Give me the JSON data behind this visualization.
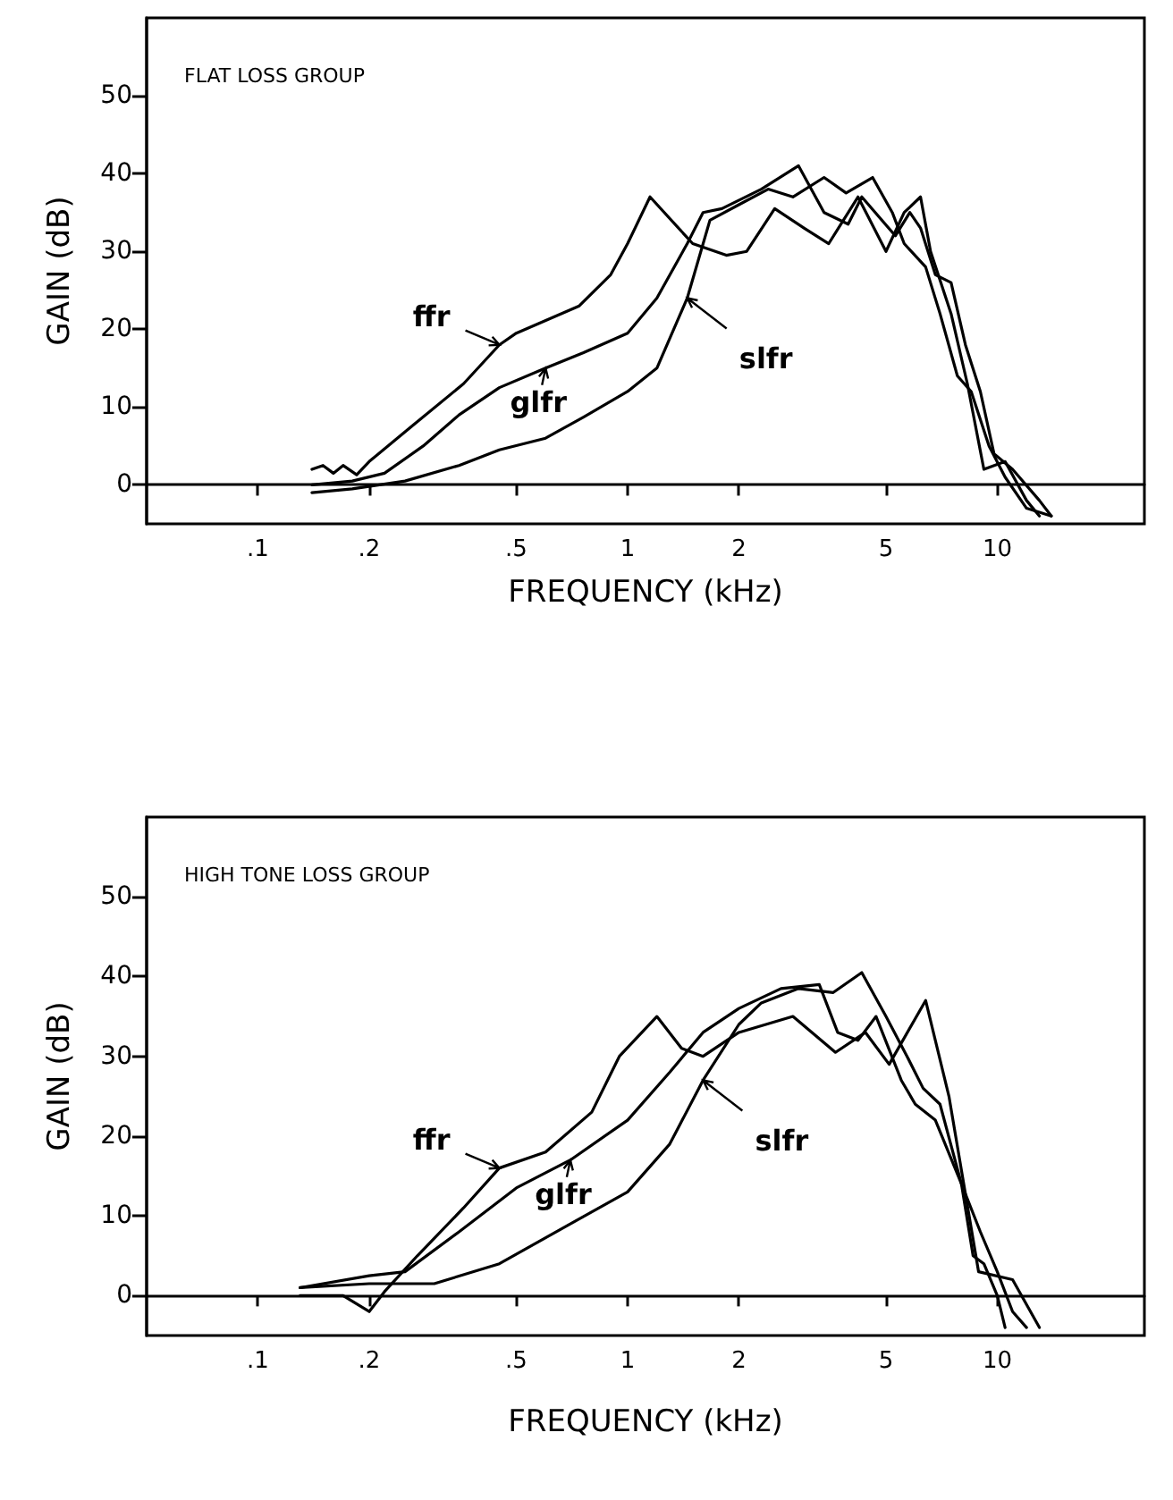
{
  "chart_data": [
    {
      "type": "line",
      "title": "FLAT LOSS GROUP",
      "xlabel": "FREQUENCY (kHz)",
      "ylabel": "GAIN (dB)",
      "log": "x",
      "marker": "none",
      "xlim": [
        0.05,
        25
      ],
      "xticks": [
        {
          "value": 0.1,
          "label": ".1"
        },
        {
          "value": 0.2,
          "label": ".2"
        },
        {
          "value": 0.5,
          "label": ".5"
        },
        1,
        2,
        5,
        10
      ],
      "ylim": [
        -5,
        60
      ],
      "yticks": [
        0,
        10,
        20,
        30,
        40,
        50
      ],
      "series": [
        {
          "name": "ffr",
          "color": "#000000",
          "x": [
            0.14,
            0.15,
            0.16,
            0.17,
            0.185,
            0.2,
            0.26,
            0.36,
            0.45,
            0.5,
            0.74,
            0.9,
            1.0,
            1.15,
            1.5,
            1.85,
            2.1,
            2.5,
            3.0,
            3.5,
            4.2,
            5.0,
            5.6,
            6.2,
            6.6,
            7.5,
            8.3,
            9.2,
            10.5,
            12,
            13
          ],
          "values": [
            2,
            2.5,
            1.5,
            2.5,
            1.3,
            3,
            7.5,
            13,
            18,
            19.5,
            23,
            27,
            31,
            37,
            31,
            29.5,
            30,
            35.5,
            33,
            31,
            37,
            30,
            35,
            37,
            30,
            22,
            13,
            2,
            3,
            -2,
            -4
          ]
        },
        {
          "name": "glfr",
          "color": "#000000",
          "x": [
            0.14,
            0.18,
            0.22,
            0.28,
            0.35,
            0.45,
            0.6,
            0.76,
            1.0,
            1.2,
            1.45,
            1.6,
            1.8,
            2.3,
            2.9,
            3.4,
            3.95,
            4.3,
            5.3,
            5.8,
            6.2,
            6.8,
            7.5,
            8.2,
            9,
            9.8,
            11,
            13,
            14
          ],
          "values": [
            0,
            0.5,
            1.5,
            5,
            9,
            12.5,
            15,
            17,
            19.5,
            24,
            31,
            35,
            35.5,
            38,
            41,
            35,
            33.5,
            37,
            32,
            35,
            33,
            27,
            26,
            18,
            12,
            4,
            2,
            -2,
            -4
          ]
        },
        {
          "name": "slfr",
          "color": "#000000",
          "x": [
            0.14,
            0.18,
            0.25,
            0.35,
            0.45,
            0.6,
            0.76,
            1.0,
            1.2,
            1.45,
            1.67,
            2.0,
            2.4,
            2.8,
            3.4,
            3.9,
            4.6,
            5.2,
            5.6,
            6.4,
            7,
            7.8,
            8.5,
            9.5,
            10.5,
            12,
            14
          ],
          "values": [
            -1,
            -0.5,
            0.5,
            2.5,
            4.5,
            6,
            8.7,
            12,
            15,
            24,
            34,
            36,
            38,
            37,
            39.5,
            37.5,
            39.5,
            35,
            31,
            28,
            22,
            14,
            12,
            5,
            1,
            -3,
            -4
          ]
        }
      ]
    },
    {
      "type": "line",
      "title": "HIGH TONE LOSS GROUP",
      "xlabel": "FREQUENCY (kHz)",
      "ylabel": "GAIN (dB)",
      "log": "x",
      "marker": "none",
      "xlim": [
        0.05,
        25
      ],
      "xticks": [
        {
          "value": 0.1,
          "label": ".1"
        },
        {
          "value": 0.2,
          "label": ".2"
        },
        {
          "value": 0.5,
          "label": ".5"
        },
        1,
        2,
        5,
        10
      ],
      "ylim": [
        -5,
        60
      ],
      "yticks": [
        0,
        10,
        20,
        30,
        40,
        50
      ],
      "series": [
        {
          "name": "ffr",
          "color": "#000000",
          "x": [
            0.13,
            0.17,
            0.2,
            0.22,
            0.27,
            0.36,
            0.45,
            0.6,
            0.8,
            0.95,
            1.2,
            1.4,
            1.6,
            2.0,
            2.8,
            3.65,
            4.4,
            5.1,
            6.4,
            7.4,
            8.9,
            11,
            13
          ],
          "values": [
            0,
            0,
            -2,
            0.5,
            5,
            11,
            16,
            18,
            23,
            30,
            35,
            31,
            30,
            33,
            35,
            30.5,
            33,
            29,
            37,
            25,
            3,
            2,
            -4
          ]
        },
        {
          "name": "glfr",
          "color": "#000000",
          "x": [
            0.13,
            0.2,
            0.25,
            0.35,
            0.5,
            0.7,
            1.0,
            1.3,
            1.6,
            2.0,
            2.6,
            3.3,
            3.7,
            4.2,
            4.7,
            5.5,
            6.0,
            6.8,
            8,
            9,
            10,
            11,
            12
          ],
          "values": [
            1,
            2.5,
            3,
            8,
            13.5,
            17,
            22,
            28,
            33,
            36,
            38.5,
            39,
            33,
            32,
            35,
            27,
            24,
            22,
            14,
            8,
            3,
            -2,
            -4
          ]
        },
        {
          "name": "slfr",
          "color": "#000000",
          "x": [
            0.13,
            0.2,
            0.3,
            0.45,
            0.7,
            1.0,
            1.3,
            1.6,
            2.0,
            2.3,
            2.9,
            3.6,
            4.3,
            5.0,
            5.7,
            6.3,
            7,
            8,
            8.6,
            9.2,
            10,
            10.5
          ],
          "values": [
            1,
            1.5,
            1.5,
            4,
            9,
            13,
            19,
            27,
            34,
            36.7,
            38.5,
            38,
            40.5,
            35,
            30,
            26,
            24,
            14,
            5,
            4,
            0,
            -4
          ]
        }
      ]
    }
  ]
}
